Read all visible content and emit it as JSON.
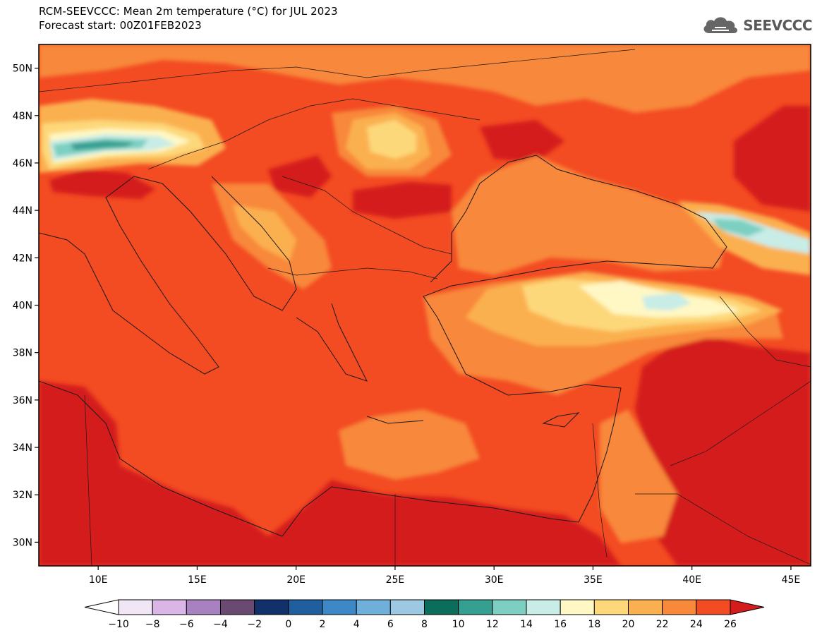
{
  "header": {
    "title_line1": "RCM-SEEVCCC: Mean 2m temperature (°C) for JUL 2023",
    "title_line2": "Forecast start: 00Z01FEB2023"
  },
  "logo": {
    "text": "SEEVCCC",
    "icon": "cloud-icon"
  },
  "map": {
    "variable": "Mean 2m temperature (°C)",
    "lon_range": [
      7,
      46
    ],
    "lat_range": [
      29,
      51
    ],
    "lon_ticks": [
      10,
      15,
      20,
      25,
      30,
      35,
      40,
      45
    ],
    "lon_tick_labels": [
      "10E",
      "15E",
      "20E",
      "25E",
      "30E",
      "35E",
      "40E",
      "45E"
    ],
    "lat_ticks": [
      30,
      32,
      34,
      36,
      38,
      40,
      42,
      44,
      46,
      48,
      50
    ],
    "lat_tick_labels": [
      "30N",
      "32N",
      "34N",
      "36N",
      "38N",
      "40N",
      "42N",
      "44N",
      "46N",
      "48N",
      "50N"
    ]
  },
  "colorbar": {
    "labels": [
      "−10",
      "−8",
      "−6",
      "−4",
      "−2",
      "0",
      "2",
      "4",
      "6",
      "8",
      "10",
      "12",
      "14",
      "16",
      "18",
      "20",
      "22",
      "24",
      "26"
    ],
    "colors": [
      "#f0e6f5",
      "#d9b6e6",
      "#a882c0",
      "#6a4a70",
      "#12306a",
      "#1f5fa0",
      "#3d88c6",
      "#6fb0db",
      "#9cc8e2",
      "#0c6e5a",
      "#35a092",
      "#7ccfc1",
      "#c8ece6",
      "#fff8c5",
      "#fdd87a",
      "#fbb04f",
      "#f8883a",
      "#f34b22"
    ],
    "under_color": "#ffffff",
    "over_color": "#d41c1c"
  }
}
